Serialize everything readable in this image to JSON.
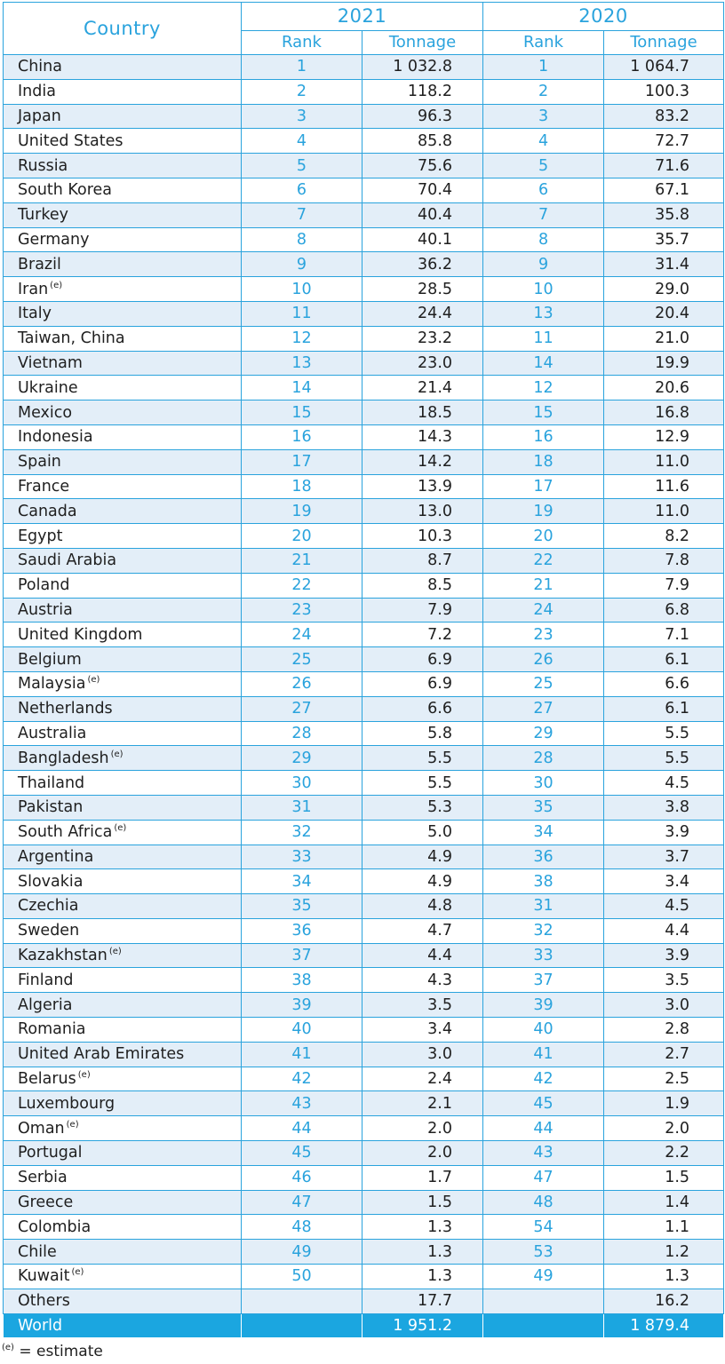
{
  "header": {
    "country": "Country",
    "year_2021": "2021",
    "year_2020": "2020",
    "rank": "Rank",
    "tonnage": "Tonnage"
  },
  "rows": [
    {
      "country": "China",
      "est": "",
      "r21": "1",
      "t21": "1 032.8",
      "r20": "1",
      "t20": "1 064.7"
    },
    {
      "country": "India",
      "est": "",
      "r21": "2",
      "t21": "118.2",
      "r20": "2",
      "t20": "100.3"
    },
    {
      "country": "Japan",
      "est": "",
      "r21": "3",
      "t21": "96.3",
      "r20": "3",
      "t20": "83.2"
    },
    {
      "country": "United States",
      "est": "",
      "r21": "4",
      "t21": "85.8",
      "r20": "4",
      "t20": "72.7"
    },
    {
      "country": "Russia",
      "est": "",
      "r21": "5",
      "t21": "75.6",
      "r20": "5",
      "t20": "71.6"
    },
    {
      "country": "South Korea",
      "est": "",
      "r21": "6",
      "t21": "70.4",
      "r20": "6",
      "t20": "67.1"
    },
    {
      "country": "Turkey",
      "est": "",
      "r21": "7",
      "t21": "40.4",
      "r20": "7",
      "t20": "35.8"
    },
    {
      "country": "Germany",
      "est": "",
      "r21": "8",
      "t21": "40.1",
      "r20": "8",
      "t20": "35.7"
    },
    {
      "country": "Brazil",
      "est": "",
      "r21": "9",
      "t21": "36.2",
      "r20": "9",
      "t20": "31.4"
    },
    {
      "country": "Iran",
      "est": "(e)",
      "r21": "10",
      "t21": "28.5",
      "r20": "10",
      "t20": "29.0"
    },
    {
      "country": "Italy",
      "est": "",
      "r21": "11",
      "t21": "24.4",
      "r20": "13",
      "t20": "20.4"
    },
    {
      "country": "Taiwan, China",
      "est": "",
      "r21": "12",
      "t21": "23.2",
      "r20": "11",
      "t20": "21.0"
    },
    {
      "country": "Vietnam",
      "est": "",
      "r21": "13",
      "t21": "23.0",
      "r20": "14",
      "t20": "19.9"
    },
    {
      "country": "Ukraine",
      "est": "",
      "r21": "14",
      "t21": "21.4",
      "r20": "12",
      "t20": "20.6"
    },
    {
      "country": "Mexico",
      "est": "",
      "r21": "15",
      "t21": "18.5",
      "r20": "15",
      "t20": "16.8"
    },
    {
      "country": "Indonesia",
      "est": "",
      "r21": "16",
      "t21": "14.3",
      "r20": "16",
      "t20": "12.9"
    },
    {
      "country": "Spain",
      "est": "",
      "r21": "17",
      "t21": "14.2",
      "r20": "18",
      "t20": "11.0"
    },
    {
      "country": "France",
      "est": "",
      "r21": "18",
      "t21": "13.9",
      "r20": "17",
      "t20": "11.6"
    },
    {
      "country": "Canada",
      "est": "",
      "r21": "19",
      "t21": "13.0",
      "r20": "19",
      "t20": "11.0"
    },
    {
      "country": "Egypt",
      "est": "",
      "r21": "20",
      "t21": "10.3",
      "r20": "20",
      "t20": "8.2"
    },
    {
      "country": "Saudi Arabia",
      "est": "",
      "r21": "21",
      "t21": "8.7",
      "r20": "22",
      "t20": "7.8"
    },
    {
      "country": "Poland",
      "est": "",
      "r21": "22",
      "t21": "8.5",
      "r20": "21",
      "t20": "7.9"
    },
    {
      "country": "Austria",
      "est": "",
      "r21": "23",
      "t21": "7.9",
      "r20": "24",
      "t20": "6.8"
    },
    {
      "country": "United Kingdom",
      "est": "",
      "r21": "24",
      "t21": "7.2",
      "r20": "23",
      "t20": "7.1"
    },
    {
      "country": "Belgium",
      "est": "",
      "r21": "25",
      "t21": "6.9",
      "r20": "26",
      "t20": "6.1"
    },
    {
      "country": "Malaysia",
      "est": "(e)",
      "r21": "26",
      "t21": "6.9",
      "r20": "25",
      "t20": "6.6"
    },
    {
      "country": "Netherlands",
      "est": "",
      "r21": "27",
      "t21": "6.6",
      "r20": "27",
      "t20": "6.1"
    },
    {
      "country": "Australia",
      "est": "",
      "r21": "28",
      "t21": "5.8",
      "r20": "29",
      "t20": "5.5"
    },
    {
      "country": "Bangladesh",
      "est": "(e)",
      "r21": "29",
      "t21": "5.5",
      "r20": "28",
      "t20": "5.5"
    },
    {
      "country": "Thailand",
      "est": "",
      "r21": "30",
      "t21": "5.5",
      "r20": "30",
      "t20": "4.5"
    },
    {
      "country": "Pakistan",
      "est": "",
      "r21": "31",
      "t21": "5.3",
      "r20": "35",
      "t20": "3.8"
    },
    {
      "country": "South Africa",
      "est": "(e)",
      "r21": "32",
      "t21": "5.0",
      "r20": "34",
      "t20": "3.9"
    },
    {
      "country": "Argentina",
      "est": "",
      "r21": "33",
      "t21": "4.9",
      "r20": "36",
      "t20": "3.7"
    },
    {
      "country": "Slovakia",
      "est": "",
      "r21": "34",
      "t21": "4.9",
      "r20": "38",
      "t20": "3.4"
    },
    {
      "country": "Czechia",
      "est": "",
      "r21": "35",
      "t21": "4.8",
      "r20": "31",
      "t20": "4.5"
    },
    {
      "country": "Sweden",
      "est": "",
      "r21": "36",
      "t21": "4.7",
      "r20": "32",
      "t20": "4.4"
    },
    {
      "country": "Kazakhstan",
      "est": "(e)",
      "r21": "37",
      "t21": "4.4",
      "r20": "33",
      "t20": "3.9"
    },
    {
      "country": "Finland",
      "est": "",
      "r21": "38",
      "t21": "4.3",
      "r20": "37",
      "t20": "3.5"
    },
    {
      "country": "Algeria",
      "est": "",
      "r21": "39",
      "t21": "3.5",
      "r20": "39",
      "t20": "3.0"
    },
    {
      "country": "Romania",
      "est": "",
      "r21": "40",
      "t21": "3.4",
      "r20": "40",
      "t20": "2.8"
    },
    {
      "country": "United Arab Emirates",
      "est": "",
      "r21": "41",
      "t21": "3.0",
      "r20": "41",
      "t20": "2.7"
    },
    {
      "country": "Belarus",
      "est": "(e)",
      "r21": "42",
      "t21": "2.4",
      "r20": "42",
      "t20": "2.5"
    },
    {
      "country": "Luxembourg",
      "est": "",
      "r21": "43",
      "t21": "2.1",
      "r20": "45",
      "t20": "1.9"
    },
    {
      "country": "Oman",
      "est": "(e)",
      "r21": "44",
      "t21": "2.0",
      "r20": "44",
      "t20": "2.0"
    },
    {
      "country": "Portugal",
      "est": "",
      "r21": "45",
      "t21": "2.0",
      "r20": "43",
      "t20": "2.2"
    },
    {
      "country": "Serbia",
      "est": "",
      "r21": "46",
      "t21": "1.7",
      "r20": "47",
      "t20": "1.5"
    },
    {
      "country": "Greece",
      "est": "",
      "r21": "47",
      "t21": "1.5",
      "r20": "48",
      "t20": "1.4"
    },
    {
      "country": "Colombia",
      "est": "",
      "r21": "48",
      "t21": "1.3",
      "r20": "54",
      "t20": "1.1"
    },
    {
      "country": "Chile",
      "est": "",
      "r21": "49",
      "t21": "1.3",
      "r20": "53",
      "t20": "1.2"
    },
    {
      "country": "Kuwait",
      "est": "(e)",
      "r21": "50",
      "t21": "1.3",
      "r20": "49",
      "t20": "1.3"
    },
    {
      "country": "Others",
      "est": "",
      "r21": "",
      "t21": "17.7",
      "r20": "",
      "t20": "16.2"
    }
  ],
  "world": {
    "country": "World",
    "t21": "1 951.2",
    "t20": "1 879.4"
  },
  "footnote": {
    "mark": "(e)",
    "text": " = estimate"
  },
  "colors": {
    "accent": "#2aa3dd",
    "row_alt": "#e3eef8",
    "world_bg": "#1ba6e0"
  }
}
